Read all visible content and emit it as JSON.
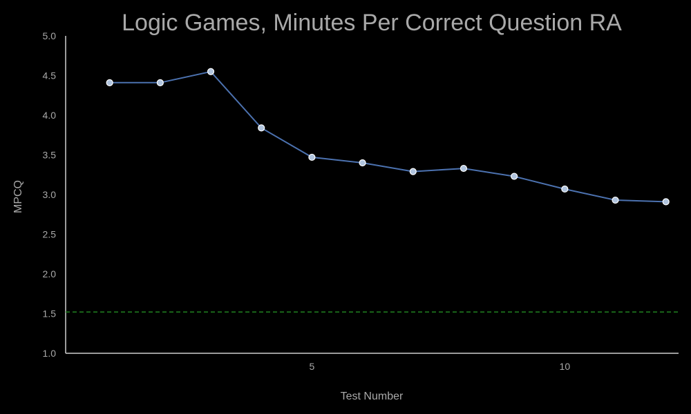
{
  "chart_data": {
    "type": "line",
    "title": "Logic Games, Minutes Per Correct Question RA",
    "xlabel": "Test Number",
    "ylabel": "MPCQ",
    "xlim": [
      0.13,
      12.25
    ],
    "ylim": [
      1.0,
      5.0
    ],
    "x_ticks": [
      5,
      10
    ],
    "y_ticks": [
      1.0,
      1.5,
      2.0,
      2.5,
      3.0,
      3.5,
      4.0,
      4.5,
      5.0
    ],
    "y_tick_labels": [
      "1.0",
      "1.5",
      "2.0",
      "2.5",
      "3.0",
      "3.5",
      "4.0",
      "4.5",
      "5.0"
    ],
    "x_tick_labels": [
      "5",
      "10"
    ],
    "grid": false,
    "series": [
      {
        "color": "#4c72b0",
        "marker_face": "#b0c4de",
        "x": [
          1,
          2,
          3,
          4,
          5,
          6,
          7,
          8,
          9,
          10,
          11,
          12
        ],
        "y": [
          4.41,
          4.41,
          4.55,
          3.84,
          3.47,
          3.4,
          3.29,
          3.33,
          3.23,
          3.07,
          2.93,
          2.91
        ]
      }
    ],
    "reference_line": {
      "y": 1.52,
      "color": "#1f7a1f",
      "style": "dashed"
    }
  }
}
